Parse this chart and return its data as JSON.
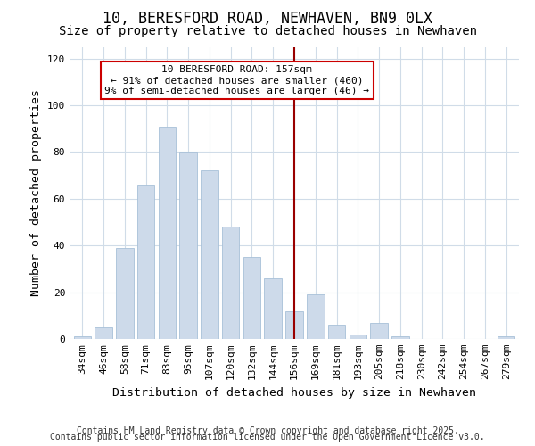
{
  "title": "10, BERESFORD ROAD, NEWHAVEN, BN9 0LX",
  "subtitle": "Size of property relative to detached houses in Newhaven",
  "xlabel": "Distribution of detached houses by size in Newhaven",
  "ylabel": "Number of detached properties",
  "bar_labels": [
    "34sqm",
    "46sqm",
    "58sqm",
    "71sqm",
    "83sqm",
    "95sqm",
    "107sqm",
    "120sqm",
    "132sqm",
    "144sqm",
    "156sqm",
    "169sqm",
    "181sqm",
    "193sqm",
    "205sqm",
    "218sqm",
    "230sqm",
    "242sqm",
    "254sqm",
    "267sqm",
    "279sqm"
  ],
  "bar_heights": [
    1,
    5,
    39,
    66,
    91,
    80,
    72,
    48,
    35,
    26,
    12,
    19,
    6,
    2,
    7,
    1,
    0,
    0,
    0,
    0,
    1
  ],
  "bar_color": "#cddaea",
  "bar_edge_color": "#a8c0d8",
  "vline_x": 10,
  "vline_color": "#990000",
  "annotation_title": "10 BERESFORD ROAD: 157sqm",
  "annotation_line1": "← 91% of detached houses are smaller (460)",
  "annotation_line2": "9% of semi-detached houses are larger (46) →",
  "annotation_box_facecolor": "#ffffff",
  "annotation_box_edgecolor": "#cc0000",
  "ylim": [
    0,
    125
  ],
  "yticks": [
    0,
    20,
    40,
    60,
    80,
    100,
    120
  ],
  "background_color": "#ffffff",
  "plot_bg_color": "#ffffff",
  "grid_color": "#d0dce8",
  "title_fontsize": 12,
  "subtitle_fontsize": 10,
  "axis_label_fontsize": 9.5,
  "tick_fontsize": 8,
  "annotation_fontsize": 8,
  "footer_fontsize": 7,
  "footer1": "Contains HM Land Registry data © Crown copyright and database right 2025.",
  "footer2": "Contains public sector information licensed under the Open Government Licence v3.0."
}
